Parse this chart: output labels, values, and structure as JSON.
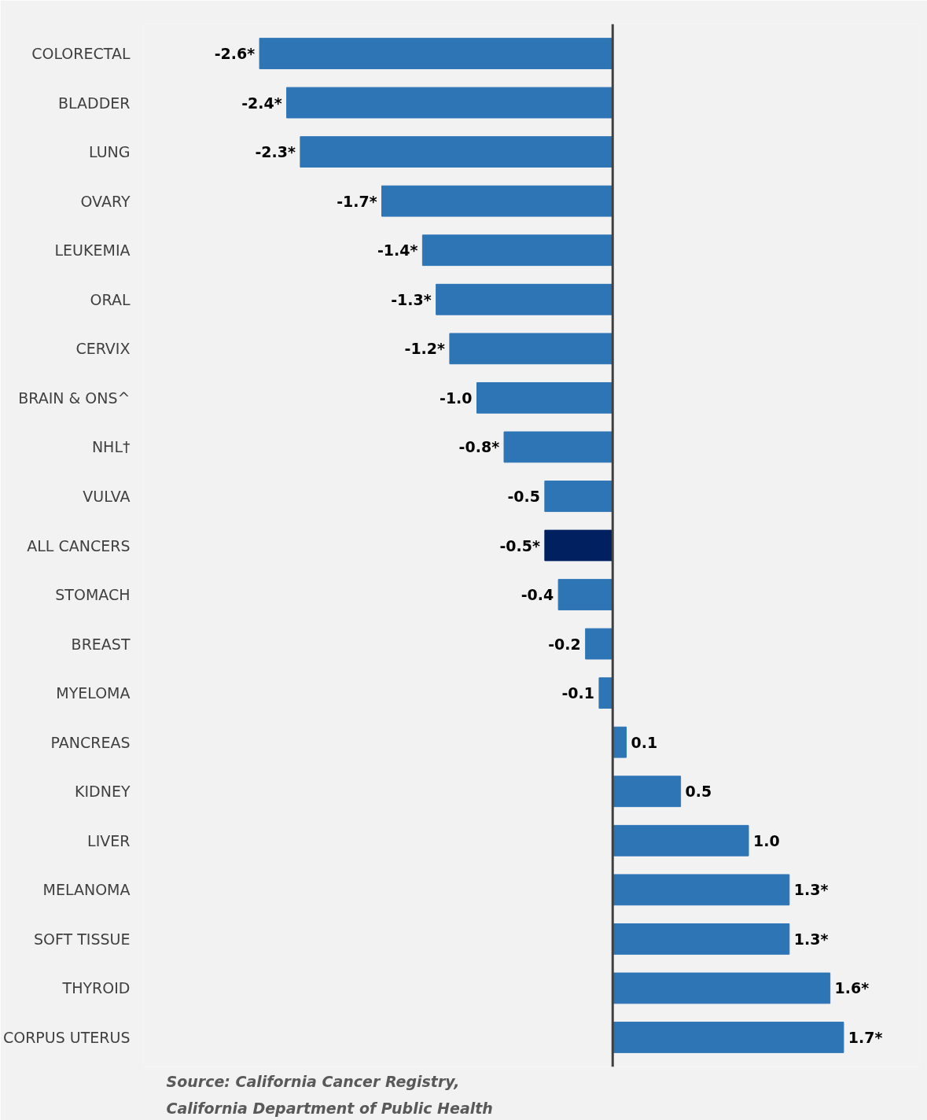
{
  "chart_data": {
    "type": "bar",
    "orientation": "horizontal",
    "categories": [
      "COLORECTAL",
      "BLADDER",
      "LUNG",
      "OVARY",
      "LEUKEMIA",
      "ORAL",
      "CERVIX",
      "BRAIN & ONS^",
      "NHL†",
      "VULVA",
      "ALL CANCERS",
      "STOMACH",
      "BREAST",
      "MYELOMA",
      "PANCREAS",
      "KIDNEY",
      "LIVER",
      "MELANOMA",
      "SOFT TISSUE",
      "THYROID",
      "CORPUS UTERUS"
    ],
    "values": [
      -2.6,
      -2.4,
      -2.3,
      -1.7,
      -1.4,
      -1.3,
      -1.2,
      -1.0,
      -0.8,
      -0.5,
      -0.5,
      -0.4,
      -0.2,
      -0.1,
      0.1,
      0.5,
      1.0,
      1.3,
      1.3,
      1.6,
      1.7
    ],
    "colors": [
      "#2e75b6",
      "#2e75b6",
      "#2e75b6",
      "#2e75b6",
      "#2e75b6",
      "#2e75b6",
      "#2e75b6",
      "#2e75b6",
      "#2e75b6",
      "#2e75b6",
      "#002060",
      "#2e75b6",
      "#2e75b6",
      "#2e75b6",
      "#2e75b6",
      "#2e75b6",
      "#2e75b6",
      "#2e75b6",
      "#2e75b6",
      "#2e75b6",
      "#2e75b6"
    ],
    "value_labels": [
      "-2.6*",
      "-2.4*",
      "-2.3*",
      "-1.7*",
      "-1.4*",
      "-1.3*",
      "-1.2*",
      "-1.0",
      "-0.8*",
      "-0.5",
      "-0.5*",
      "-0.4",
      "-0.2",
      "-0.1",
      "0.1",
      "0.5",
      "1.0",
      "1.3*",
      "1.3*",
      "1.6*",
      "1.7*"
    ],
    "grid": false,
    "annotations": [
      "Source: California Cancer Registry,",
      "California Department of Public Health"
    ]
  }
}
